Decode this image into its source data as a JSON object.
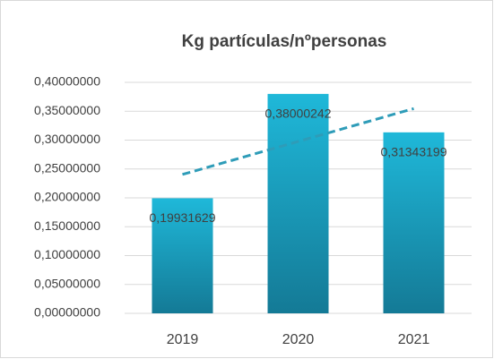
{
  "chart_data": {
    "type": "bar",
    "title": "Kg partículas/nºpersonas",
    "categories": [
      "2019",
      "2020",
      "2021"
    ],
    "values": [
      0.19931629,
      0.38000242,
      0.31343199
    ],
    "value_labels": [
      "0,19931629",
      "0,38000242",
      "0,31343199"
    ],
    "color": "#1aa3c4",
    "trendline": "linear",
    "trendline_color": "#2e9cb8",
    "ylim": [
      0,
      0.4
    ],
    "yticks": [
      {
        "value": 0,
        "label": "0,00000000"
      },
      {
        "value": 0.05,
        "label": "0,05000000"
      },
      {
        "value": 0.1,
        "label": "0,10000000"
      },
      {
        "value": 0.15,
        "label": "0,15000000"
      },
      {
        "value": 0.2,
        "label": "0,20000000"
      },
      {
        "value": 0.25,
        "label": "0,25000000"
      },
      {
        "value": 0.3,
        "label": "0,30000000"
      },
      {
        "value": 0.35,
        "label": "0,35000000"
      },
      {
        "value": 0.4,
        "label": "0,40000000"
      }
    ],
    "grid": true
  }
}
